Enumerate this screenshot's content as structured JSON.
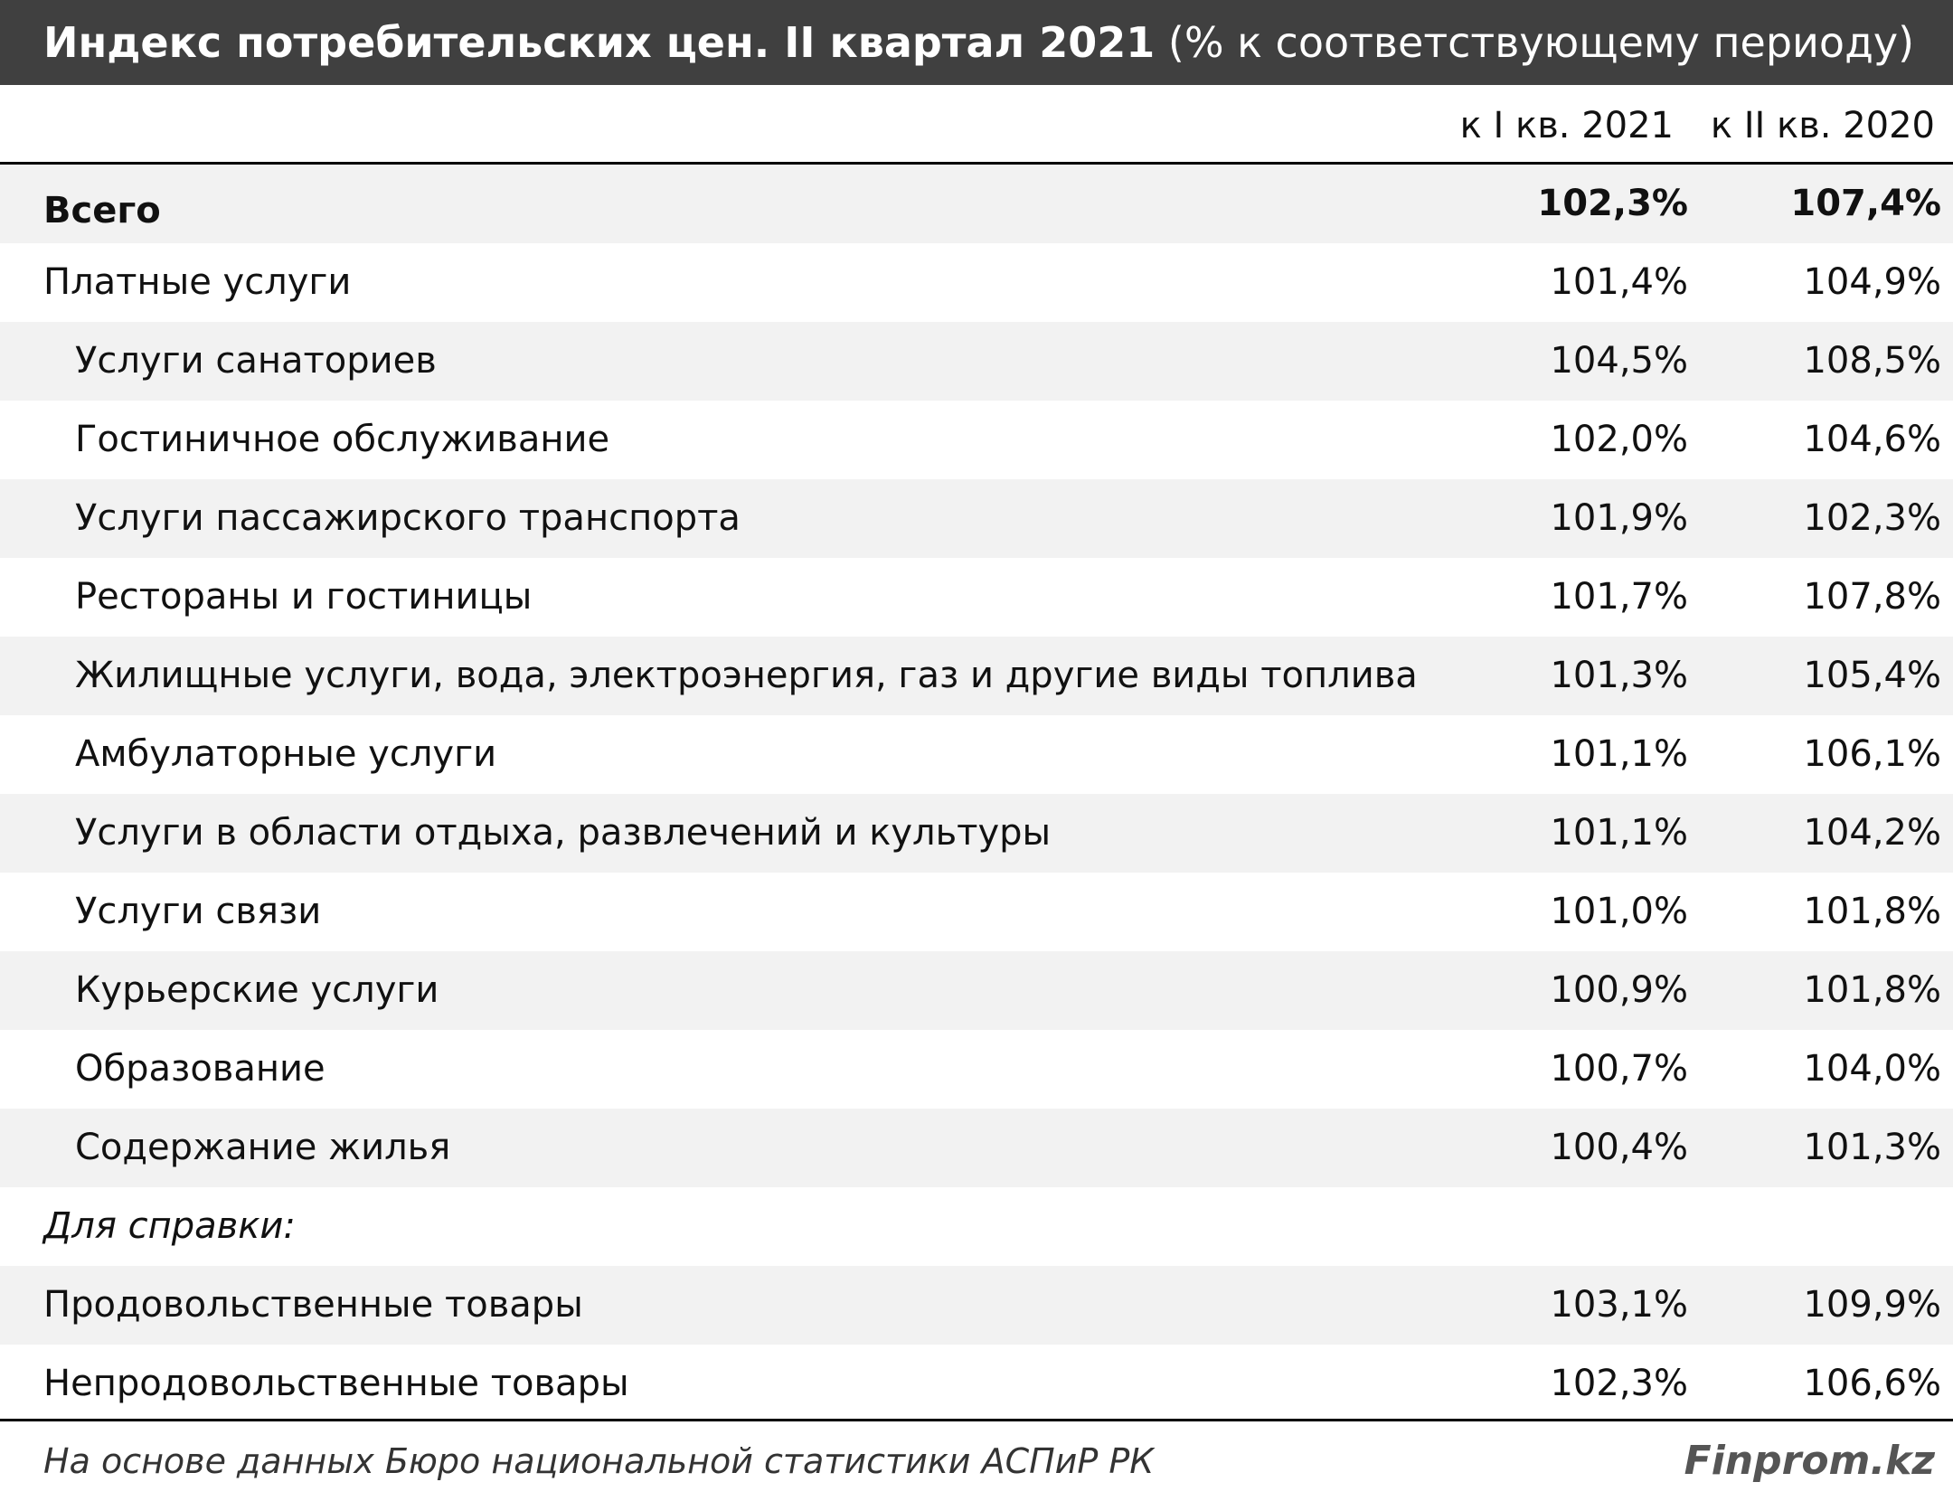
{
  "header": {
    "title": "Индекс потребительских цен. II квартал  2021",
    "subtitle": "(% к соответствующему периоду)"
  },
  "table": {
    "columns": [
      "к I кв. 2021",
      "к II кв. 2020"
    ],
    "total": {
      "label": "Всего",
      "values": [
        "102,3%",
        "107,4%"
      ]
    },
    "paid_services": {
      "label": "Платные услуги",
      "values": [
        "101,4%",
        "104,9%"
      ],
      "items": [
        {
          "label": "Услуги санаториев",
          "values": [
            "104,5%",
            "108,5%"
          ]
        },
        {
          "label": "Гостиничное обслуживание",
          "values": [
            "102,0%",
            "104,6%"
          ]
        },
        {
          "label": "Услуги пассажирского транспорта",
          "values": [
            "101,9%",
            "102,3%"
          ]
        },
        {
          "label": "Рестораны и гостиницы",
          "values": [
            "101,7%",
            "107,8%"
          ]
        },
        {
          "label": "Жилищные услуги, вода, электроэнергия, газ и другие виды топлива",
          "values": [
            "101,3%",
            "105,4%"
          ]
        },
        {
          "label": "Амбулаторные услуги",
          "values": [
            "101,1%",
            "106,1%"
          ]
        },
        {
          "label": "Услуги в области отдыха, развлечений и культуры",
          "values": [
            "101,1%",
            "104,2%"
          ]
        },
        {
          "label": "Услуги связи",
          "values": [
            "101,0%",
            "101,8%"
          ]
        },
        {
          "label": "Курьерские услуги",
          "values": [
            "100,9%",
            "101,8%"
          ]
        },
        {
          "label": "Образование",
          "values": [
            "100,7%",
            "104,0%"
          ]
        },
        {
          "label": "Содержание жилья",
          "values": [
            "100,4%",
            "101,3%"
          ]
        }
      ]
    },
    "reference": {
      "label": "Для справки:",
      "rows": [
        {
          "label": "Продовольственные товары",
          "values": [
            "103,1%",
            "109,9%"
          ]
        },
        {
          "label": "Непродовольственные товары",
          "values": [
            "102,3%",
            "106,6%"
          ]
        }
      ]
    }
  },
  "footer": {
    "source": "На основе данных Бюро национальной статистики АСПиР РК",
    "brand": "Finprom.kz"
  }
}
